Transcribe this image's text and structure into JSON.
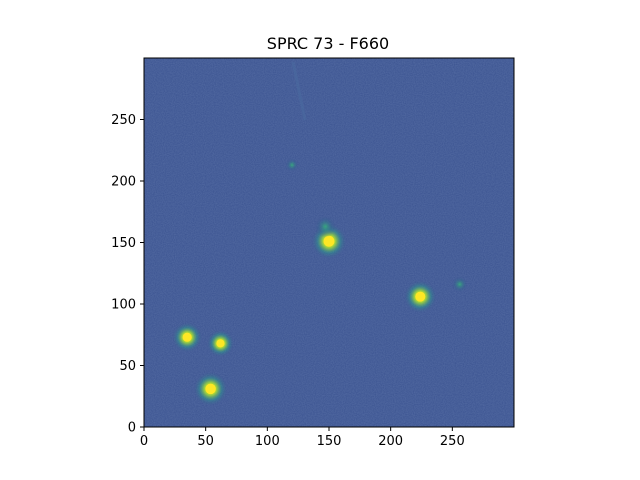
{
  "title": "SPRC 73 - F660",
  "chart_data": {
    "type": "heatmap",
    "title": "SPRC 73 - F660",
    "xlabel": "",
    "ylabel": "",
    "xlim": [
      0,
      300
    ],
    "ylim": [
      0,
      300
    ],
    "x_ticks": [
      0,
      50,
      100,
      150,
      200,
      250
    ],
    "y_ticks": [
      0,
      50,
      100,
      150,
      200,
      250
    ],
    "colormap": "viridis",
    "background_color": "#3a5290",
    "sources": [
      {
        "x": 150,
        "y": 151,
        "brightness": 1.0
      },
      {
        "x": 147,
        "y": 163,
        "brightness": 0.5
      },
      {
        "x": 224,
        "y": 106,
        "brightness": 0.9
      },
      {
        "x": 54,
        "y": 31,
        "brightness": 0.95
      },
      {
        "x": 35,
        "y": 73,
        "brightness": 0.8
      },
      {
        "x": 62,
        "y": 68,
        "brightness": 0.7
      },
      {
        "x": 256,
        "y": 116,
        "brightness": 0.3
      },
      {
        "x": 120,
        "y": 213,
        "brightness": 0.2
      }
    ]
  }
}
